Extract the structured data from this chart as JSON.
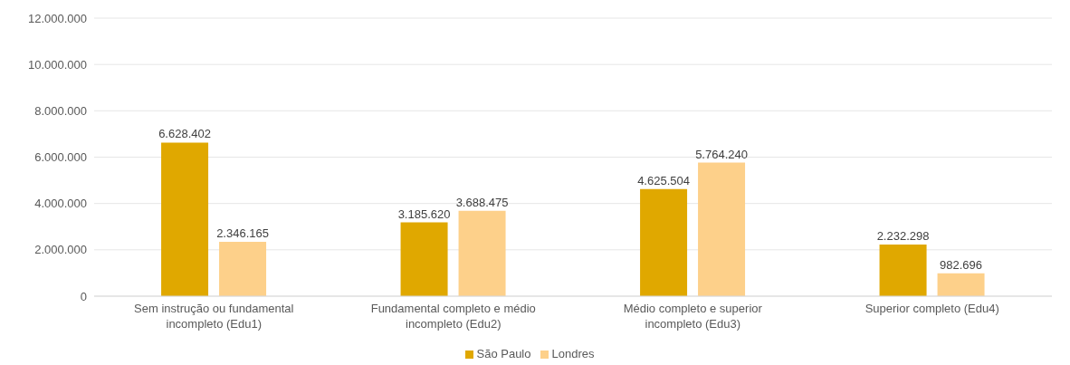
{
  "chart_data": {
    "type": "bar",
    "categories": [
      "Sem instrução ou fundamental incompleto (Edu1)",
      "Fundamental completo e médio incompleto (Edu2)",
      "Médio completo e superior incompleto (Edu3)",
      "Superior completo (Edu4)"
    ],
    "series": [
      {
        "name": "São Paulo",
        "color": "#e0a800",
        "values": [
          6628402,
          3185620,
          4625504,
          2232298
        ],
        "value_labels": [
          "6.628.402",
          "3.185.620",
          "4.625.504",
          "2.232.298"
        ]
      },
      {
        "name": "Londres",
        "color": "#fdd08a",
        "values": [
          2346165,
          3688475,
          5764240,
          982696
        ],
        "value_labels": [
          "2.346.165",
          "3.688.475",
          "5.764.240",
          "982.696"
        ]
      }
    ],
    "ylim": [
      0,
      12000000
    ],
    "yticks": [
      {
        "value": 0,
        "label": "0"
      },
      {
        "value": 2000000,
        "label": "2.000.000"
      },
      {
        "value": 4000000,
        "label": "4.000.000"
      },
      {
        "value": 6000000,
        "label": "6.000.000"
      },
      {
        "value": 8000000,
        "label": "8.000.000"
      },
      {
        "value": 10000000,
        "label": "10.000.000"
      },
      {
        "value": 12000000,
        "label": "12.000.000"
      }
    ],
    "grid": "y",
    "legend": "bottom"
  }
}
